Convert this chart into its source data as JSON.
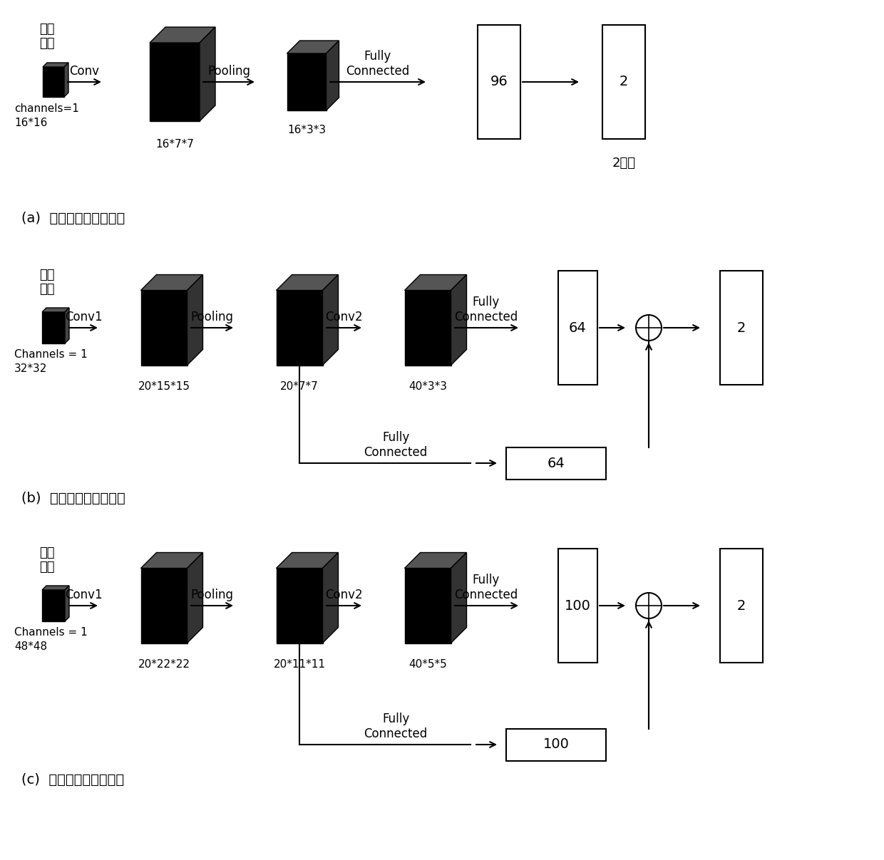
{
  "bg_color": "#ffffff",
  "diagram_a": {
    "label": "(a)  人头检测第一级网络",
    "input_label1": "输入",
    "input_label2": "图像",
    "input_sub1": "channels=1",
    "input_sub2": "16*16",
    "conv_label": "Conv",
    "block1_label": "16*7*7",
    "pool_label": "Pooling",
    "block2_label": "16*3*3",
    "fc_label": "Fully\nConnected",
    "fc_box_label": "96",
    "out_box_label": "2",
    "out_label": "2分类"
  },
  "diagram_b": {
    "label": "(b)  人头网络第二级网络",
    "input_label1": "输入",
    "input_label2": "图片",
    "input_sub1": "Channels = 1",
    "input_sub2": "32*32",
    "conv1_label": "Conv1",
    "block1_label": "20*15*15",
    "pool_label": "Pooling",
    "block2_label": "20*7*7",
    "conv2_label": "Conv2",
    "block3_label": "40*3*3",
    "fc_label": "Fully\nConnected",
    "fc_box_label": "64",
    "out_box_label": "2",
    "branch_fc_label": "Fully\nConnected",
    "branch_box_label": "64"
  },
  "diagram_c": {
    "label": "(c)  人头检测第三级网络",
    "input_label1": "输入",
    "input_label2": "图片",
    "input_sub1": "Channels = 1",
    "input_sub2": "48*48",
    "conv1_label": "Conv1",
    "block1_label": "20*22*22",
    "pool_label": "Pooling",
    "block2_label": "20*11*11",
    "conv2_label": "Conv2",
    "block3_label": "40*5*5",
    "fc_label": "Fully\nConnected",
    "fc_box_label": "100",
    "out_box_label": "2",
    "branch_fc_label": "Fully\nConnected",
    "branch_box_label": "100"
  }
}
